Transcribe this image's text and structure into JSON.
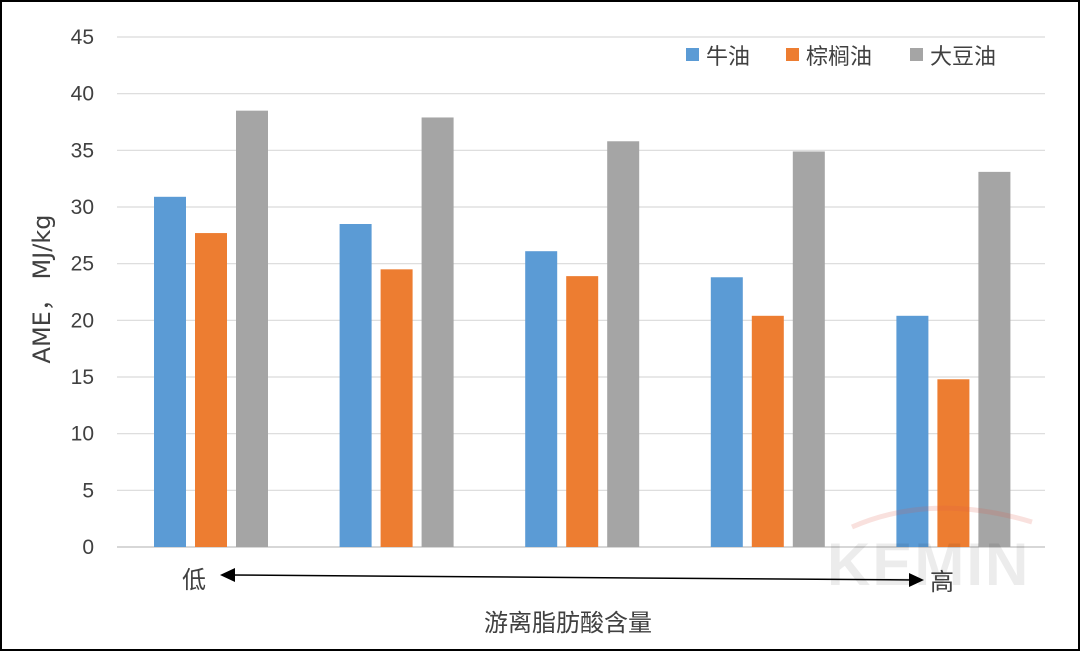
{
  "chart_data": {
    "type": "bar",
    "categories": [
      "",
      "",
      "",
      "",
      ""
    ],
    "series": [
      {
        "name": "牛油",
        "color": "#5B9BD5",
        "values": [
          30.9,
          28.5,
          26.1,
          23.8,
          20.4
        ]
      },
      {
        "name": "棕榈油",
        "color": "#ED7D31",
        "values": [
          27.7,
          24.5,
          23.9,
          20.4,
          14.8
        ]
      },
      {
        "name": "大豆油",
        "color": "#A5A5A5",
        "values": [
          38.5,
          37.9,
          35.8,
          34.9,
          33.1
        ]
      }
    ],
    "ylabel": "AME，  MJ/kg",
    "xlabel": "游离脂肪酸含量",
    "x_low_label": "低",
    "x_high_label": "高",
    "ylim": [
      0,
      45
    ],
    "yticks": [
      0,
      5,
      10,
      15,
      20,
      25,
      30,
      35,
      40,
      45
    ],
    "grid": true,
    "legend_position": "top-right",
    "gridline_color": "#D9D9D9"
  },
  "watermark": {
    "text": "KEMIN",
    "accent_color": "#E05A47"
  }
}
